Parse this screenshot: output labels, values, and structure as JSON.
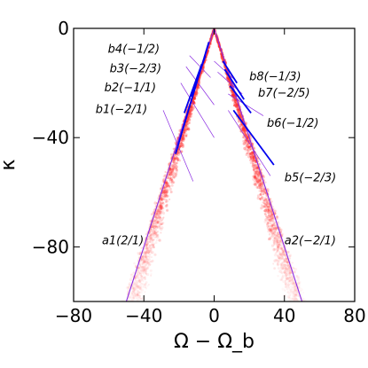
{
  "chart_data": {
    "type": "scatter",
    "xlabel": "Ω − Ω_b",
    "ylabel": "κ",
    "xlim": [
      -80,
      80
    ],
    "ylim": [
      -100,
      0
    ],
    "xticks": [
      -80,
      -40,
      0,
      40,
      80
    ],
    "yticks": [
      0,
      -40,
      -80
    ],
    "xtick_labels": [
      "−80",
      "−40",
      "0",
      "40",
      "80"
    ],
    "ytick_labels": [
      "0",
      "−40",
      "−80"
    ],
    "grid": false,
    "colors": {
      "density": "#ff2a2a",
      "resonance": "#0000ee",
      "guide": "#8a2be2"
    },
    "density_arms": [
      {
        "name": "left",
        "from": [
          0,
          0
        ],
        "to": [
          -48,
          -100
        ],
        "x_spread": 14
      },
      {
        "name": "right",
        "from": [
          0,
          0
        ],
        "to": [
          48,
          -100
        ],
        "x_spread": 14
      }
    ],
    "resonance_guides": [
      {
        "label": "a1(2/1)",
        "x": [
          0,
          -50
        ],
        "y": [
          0,
          -100
        ]
      },
      {
        "label": "a2(−2/1)",
        "x": [
          0,
          50
        ],
        "y": [
          0,
          -100
        ]
      },
      {
        "label": "b1(−2/1)",
        "x": [
          -29,
          -12
        ],
        "y": [
          -30,
          -56
        ]
      },
      {
        "label": "b2(−1/1)",
        "x": [
          -19,
          0
        ],
        "y": [
          -20,
          -40
        ]
      },
      {
        "label": "b3(−2/3)",
        "x": [
          -16,
          0
        ],
        "y": [
          -14,
          -28
        ]
      },
      {
        "label": "b4(−1/2)",
        "x": [
          -14,
          -2
        ],
        "y": [
          -10,
          -18
        ]
      },
      {
        "label": "b5(−2/3)",
        "x": [
          8,
          32
        ],
        "y": [
          -30,
          -54
        ]
      },
      {
        "label": "b6(−1/2)",
        "x": [
          8,
          28
        ],
        "y": [
          -24,
          -32
        ]
      },
      {
        "label": "b7(−2/5)",
        "x": [
          2,
          16
        ],
        "y": [
          -16,
          -24
        ]
      },
      {
        "label": "b8(−1/3)",
        "x": [
          0,
          12
        ],
        "y": [
          -12,
          -19
        ]
      }
    ],
    "resonance_segments": [
      {
        "x": [
          -10,
          -22
        ],
        "y": [
          -20,
          -46
        ]
      },
      {
        "x": [
          -7,
          -17
        ],
        "y": [
          -13,
          -31
        ]
      },
      {
        "x": [
          -5,
          -13
        ],
        "y": [
          -10,
          -25
        ]
      },
      {
        "x": [
          -3,
          -10
        ],
        "y": [
          -5,
          -20
        ]
      },
      {
        "x": [
          11,
          34
        ],
        "y": [
          -30,
          -50
        ]
      },
      {
        "x": [
          9,
          21
        ],
        "y": [
          -21,
          -31
        ]
      },
      {
        "x": [
          6,
          17
        ],
        "y": [
          -15,
          -26
        ]
      },
      {
        "x": [
          5,
          13
        ],
        "y": [
          -12,
          -20
        ]
      }
    ],
    "annotations": [
      {
        "text": "b4(−1/2)",
        "x": -31,
        "y": -9,
        "anchor": "end"
      },
      {
        "text": "b3(−2/3)",
        "x": -30,
        "y": -16,
        "anchor": "end"
      },
      {
        "text": "b2(−1/1)",
        "x": -33,
        "y": -23,
        "anchor": "end"
      },
      {
        "text": "b1(−2/1)",
        "x": -38,
        "y": -31,
        "anchor": "end"
      },
      {
        "text": "b8(−1/3)",
        "x": 20,
        "y": -19,
        "anchor": "start"
      },
      {
        "text": "b7(−2/5)",
        "x": 25,
        "y": -25,
        "anchor": "start"
      },
      {
        "text": "b6(−1/2)",
        "x": 30,
        "y": -36,
        "anchor": "start"
      },
      {
        "text": "b5(−2/3)",
        "x": 40,
        "y": -56,
        "anchor": "start"
      },
      {
        "text": "a1(2/1)",
        "x": -40,
        "y": -79,
        "anchor": "end"
      },
      {
        "text": "a2(−2/1)",
        "x": 40,
        "y": -79,
        "anchor": "start"
      }
    ]
  }
}
